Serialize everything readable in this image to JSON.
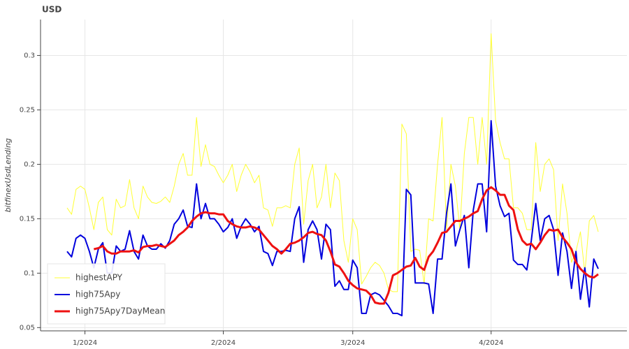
{
  "chart_data": {
    "type": "line",
    "title": "USD",
    "y_label": "bitfinexUsdLending",
    "categories": [
      null,
      null,
      null,
      null,
      "1/2024",
      null,
      null,
      null,
      null,
      null,
      null,
      null,
      null,
      null,
      null,
      null,
      null,
      null,
      null,
      null,
      null,
      null,
      null,
      null,
      null,
      null,
      null,
      null,
      null,
      null,
      null,
      null,
      null,
      null,
      null,
      "2/2024",
      null,
      null,
      null,
      null,
      null,
      null,
      null,
      null,
      null,
      null,
      null,
      null,
      null,
      null,
      null,
      null,
      null,
      null,
      null,
      null,
      null,
      null,
      null,
      null,
      null,
      null,
      null,
      null,
      "3/2024",
      null,
      null,
      null,
      null,
      null,
      null,
      null,
      null,
      null,
      null,
      null,
      null,
      null,
      null,
      null,
      null,
      null,
      null,
      null,
      null,
      null,
      null,
      null,
      null,
      null,
      null,
      null,
      null,
      null,
      null,
      "4/2024",
      null,
      null,
      null,
      null,
      null,
      null,
      null,
      null,
      null,
      null,
      null,
      null,
      null,
      null,
      null,
      null,
      null,
      null,
      null,
      null,
      null,
      null,
      null,
      null
    ],
    "series": [
      {
        "name": "highestAPY",
        "color": "#ffff33",
        "width": 1,
        "values": [
          0.16,
          0.154,
          0.177,
          0.18,
          0.177,
          0.16,
          0.14,
          0.165,
          0.17,
          0.14,
          0.135,
          0.168,
          0.16,
          0.162,
          0.186,
          0.16,
          0.15,
          0.18,
          0.17,
          0.165,
          0.164,
          0.166,
          0.17,
          0.165,
          0.18,
          0.2,
          0.21,
          0.19,
          0.19,
          0.243,
          0.198,
          0.218,
          0.2,
          0.198,
          0.19,
          0.183,
          0.19,
          0.2,
          0.175,
          0.19,
          0.2,
          0.193,
          0.183,
          0.19,
          0.16,
          0.158,
          0.143,
          0.16,
          0.16,
          0.162,
          0.16,
          0.2,
          0.215,
          0.145,
          0.185,
          0.2,
          0.16,
          0.17,
          0.2,
          0.16,
          0.192,
          0.185,
          0.13,
          0.11,
          0.15,
          0.14,
          0.09,
          0.097,
          0.105,
          0.11,
          0.107,
          0.1,
          0.085,
          0.083,
          0.083,
          0.237,
          0.228,
          0.12,
          0.122,
          0.121,
          0.09,
          0.15,
          0.148,
          0.2,
          0.243,
          0.14,
          0.2,
          0.18,
          0.14,
          0.21,
          0.243,
          0.243,
          0.2,
          0.243,
          0.2,
          0.32,
          0.24,
          0.22,
          0.205,
          0.205,
          0.16,
          0.16,
          0.155,
          0.14,
          0.14,
          0.22,
          0.175,
          0.2,
          0.205,
          0.195,
          0.13,
          0.182,
          0.155,
          0.11,
          0.12,
          0.138,
          0.1,
          0.148,
          0.153,
          0.138
        ]
      },
      {
        "name": "high75Apy",
        "color": "#0000dd",
        "width": 2,
        "values": [
          0.12,
          0.115,
          0.132,
          0.135,
          0.132,
          0.12,
          0.105,
          0.122,
          0.128,
          0.1,
          0.1,
          0.125,
          0.12,
          0.122,
          0.139,
          0.12,
          0.113,
          0.135,
          0.125,
          0.122,
          0.122,
          0.127,
          0.123,
          0.13,
          0.145,
          0.15,
          0.158,
          0.143,
          0.142,
          0.182,
          0.15,
          0.164,
          0.15,
          0.15,
          0.145,
          0.138,
          0.142,
          0.15,
          0.132,
          0.143,
          0.15,
          0.145,
          0.138,
          0.143,
          0.12,
          0.118,
          0.107,
          0.12,
          0.12,
          0.121,
          0.12,
          0.15,
          0.161,
          0.11,
          0.14,
          0.148,
          0.14,
          0.113,
          0.145,
          0.14,
          0.088,
          0.093,
          0.085,
          0.085,
          0.112,
          0.105,
          0.063,
          0.063,
          0.08,
          0.082,
          0.08,
          0.075,
          0.07,
          0.063,
          0.063,
          0.061,
          0.177,
          0.172,
          0.091,
          0.091,
          0.091,
          0.09,
          0.063,
          0.113,
          0.113,
          0.155,
          0.182,
          0.125,
          0.14,
          0.153,
          0.105,
          0.158,
          0.182,
          0.182,
          0.138,
          0.24,
          0.18,
          0.162,
          0.152,
          0.155,
          0.112,
          0.108,
          0.108,
          0.103,
          0.13,
          0.164,
          0.13,
          0.15,
          0.153,
          0.14,
          0.098,
          0.137,
          0.12,
          0.086,
          0.12,
          0.076,
          0.105,
          0.069,
          0.113,
          0.104
        ]
      },
      {
        "name": "high75Apy7DayMean",
        "color": "#ee1111",
        "width": 3,
        "values": [
          null,
          null,
          null,
          null,
          null,
          null,
          0.122,
          0.123,
          0.125,
          0.12,
          0.118,
          0.118,
          0.12,
          0.12,
          0.12,
          0.121,
          0.119,
          0.124,
          0.125,
          0.125,
          0.126,
          0.125,
          0.124,
          0.127,
          0.13,
          0.135,
          0.138,
          0.142,
          0.148,
          0.152,
          0.155,
          0.156,
          0.155,
          0.155,
          0.154,
          0.154,
          0.148,
          0.145,
          0.143,
          0.142,
          0.142,
          0.143,
          0.142,
          0.14,
          0.135,
          0.13,
          0.125,
          0.122,
          0.118,
          0.122,
          0.127,
          0.128,
          0.13,
          0.133,
          0.137,
          0.138,
          0.136,
          0.135,
          0.13,
          0.12,
          0.108,
          0.106,
          0.1,
          0.093,
          0.089,
          0.086,
          0.085,
          0.084,
          0.08,
          0.073,
          0.072,
          0.072,
          0.082,
          0.098,
          0.1,
          0.103,
          0.106,
          0.107,
          0.114,
          0.106,
          0.103,
          0.115,
          0.12,
          0.128,
          0.137,
          0.138,
          0.143,
          0.148,
          0.148,
          0.15,
          0.152,
          0.155,
          0.157,
          0.168,
          0.176,
          0.179,
          0.176,
          0.172,
          0.172,
          0.162,
          0.158,
          0.14,
          0.13,
          0.126,
          0.127,
          0.122,
          0.128,
          0.135,
          0.14,
          0.139,
          0.14,
          0.133,
          0.128,
          0.122,
          0.11,
          0.104,
          0.1,
          0.097,
          0.096,
          0.099
        ]
      }
    ],
    "ylim": [
      0.047,
      0.333
    ],
    "yticks": [
      0.05,
      0.1,
      0.15,
      0.2,
      0.25,
      0.3
    ],
    "grid": true,
    "legend": "bottom-left"
  }
}
